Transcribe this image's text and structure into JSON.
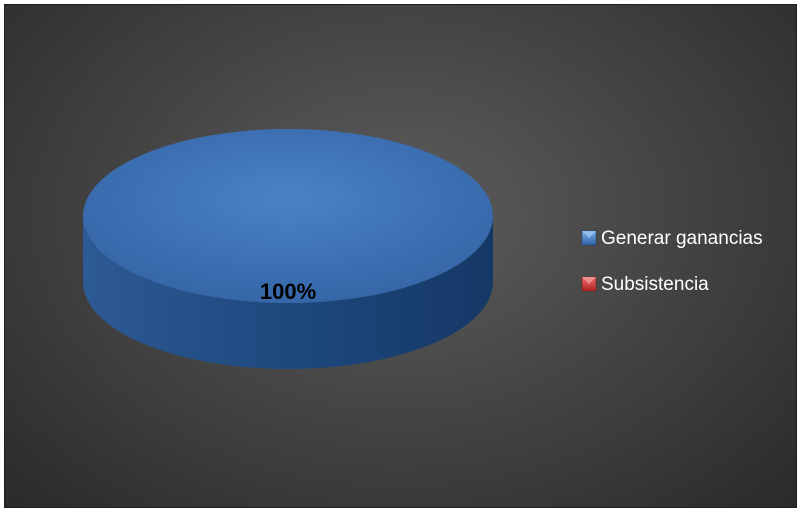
{
  "chart_data": {
    "type": "pie",
    "title": "",
    "categories": [
      "Generar ganancias",
      "Subsistencia"
    ],
    "values": [
      100,
      0
    ],
    "data_labels": [
      "100%",
      ""
    ],
    "colors": [
      "#3a6fb5",
      "#c9302c"
    ],
    "legend_position": "right",
    "style": "3d"
  }
}
